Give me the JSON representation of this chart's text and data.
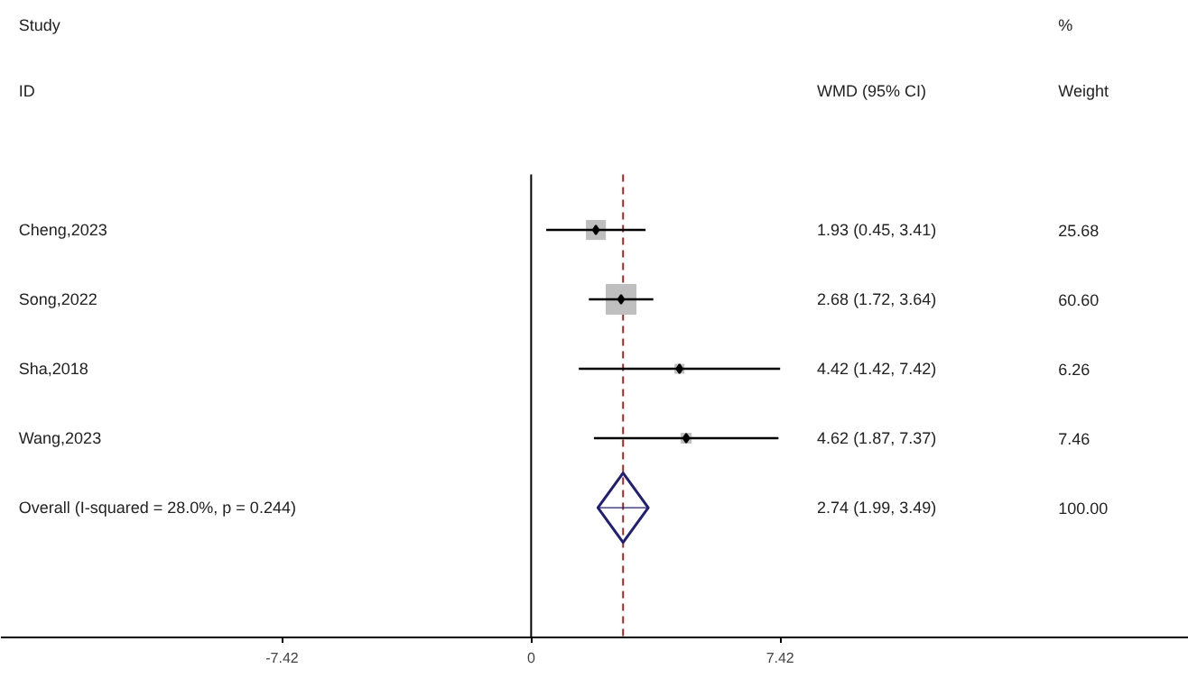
{
  "chart_data": {
    "type": "scatter",
    "orientation": "horizontal",
    "categories": [
      "Cheng,2023",
      "Song,2022",
      "Sha,2018",
      "Wang,2023",
      "Overall  (I-squared = 28.0%, p = 0.244)"
    ],
    "series": [
      {
        "marker": "square",
        "color": "#bfbfbf",
        "values": [
          1.93,
          2.68,
          4.42,
          4.62,
          null
        ],
        "sizes": [
          0.424,
          1,
          0.103,
          0.123,
          null
        ],
        "errors": [
          [
            0.45,
            3.41
          ],
          [
            1.72,
            3.64
          ],
          [
            1.42,
            7.42
          ],
          [
            1.87,
            7.37
          ],
          null
        ]
      },
      {
        "marker": "diamond",
        "color": "#1f1f7a",
        "values": [
          null,
          null,
          null,
          null,
          2.74
        ],
        "errors": [
          null,
          null,
          null,
          null,
          [
            1.99,
            3.49
          ]
        ]
      }
    ],
    "annotations": [
      "Study",
      "ID",
      "WMD (95% CI)",
      "%",
      "Weight",
      "25.68",
      "60.60",
      "6.26",
      "7.46",
      "100.00",
      "1.93 (0.45, 3.41)",
      "2.68 (1.72, 3.64)",
      "4.42 (1.42, 7.42)",
      "4.62 (1.87, 7.37)",
      "2.74 (1.99, 3.49)"
    ],
    "ref_lines": [
      {
        "axis": "x",
        "value": 0,
        "color": "#000000",
        "line_style": "solid"
      },
      {
        "axis": "x",
        "value": 2.74,
        "color": "#b22222",
        "line_style": "dashed"
      }
    ],
    "xlim": [
      -15.8,
      19.6
    ],
    "xticks": [
      -7.42,
      0,
      7.42
    ],
    "grid": false,
    "tick_labels": "x"
  }
}
